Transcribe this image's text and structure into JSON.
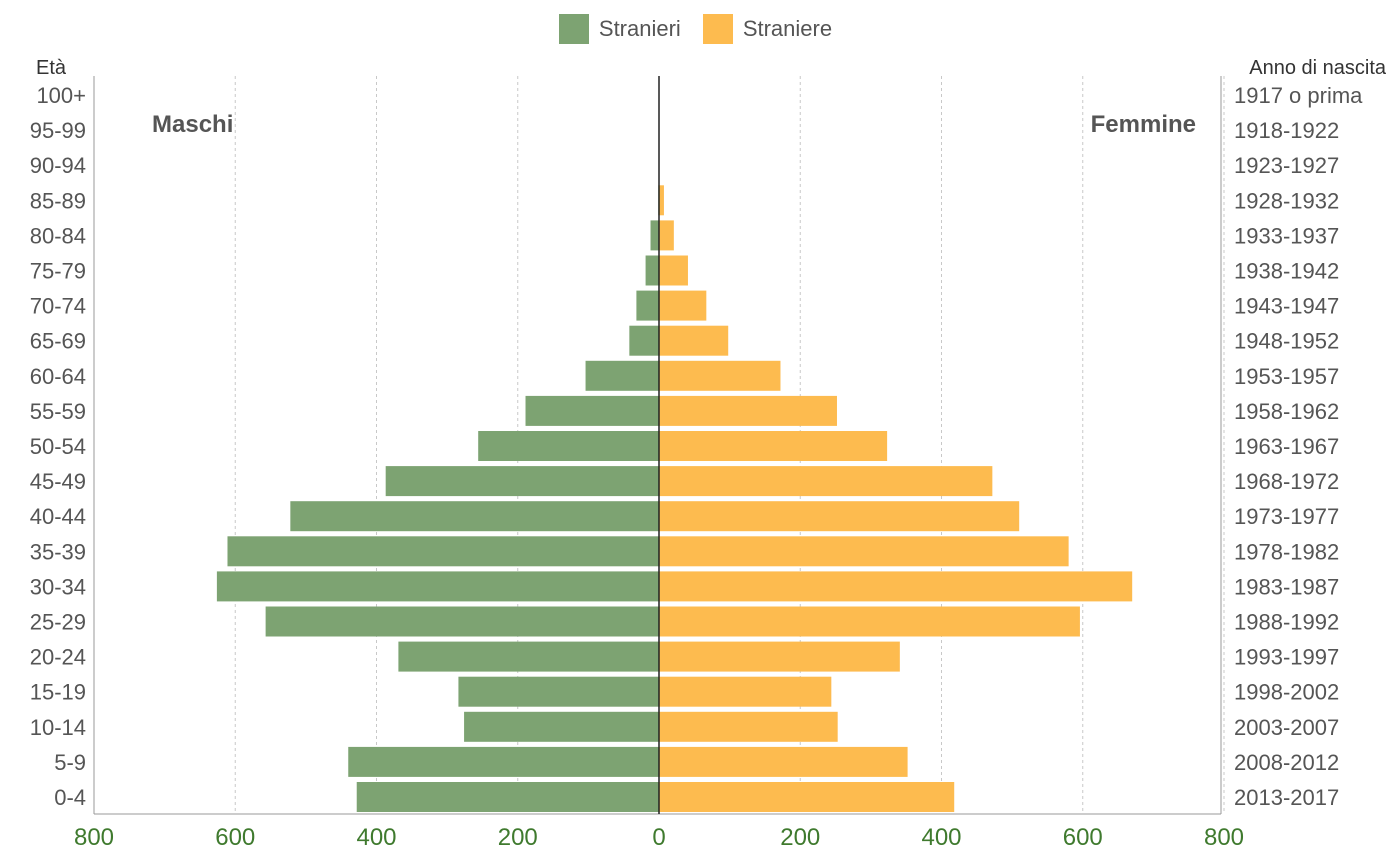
{
  "chart_data": {
    "type": "bar",
    "orientation": "horizontal-pyramid",
    "legend": {
      "placement": "top-center"
    },
    "grid": true,
    "left_axis_label": "Età",
    "right_axis_label": "Anno di nascita",
    "left_title": "Maschi",
    "right_title": "Femmine",
    "xlim": [
      -800,
      800
    ],
    "x_ticks": [
      -800,
      -600,
      -400,
      -200,
      0,
      200,
      400,
      600,
      800
    ],
    "x_tick_labels": [
      "800",
      "600",
      "400",
      "200",
      "0",
      "200",
      "400",
      "600",
      "800"
    ],
    "categories": [
      "0-4",
      "5-9",
      "10-14",
      "15-19",
      "20-24",
      "25-29",
      "30-34",
      "35-39",
      "40-44",
      "45-49",
      "50-54",
      "55-59",
      "60-64",
      "65-69",
      "70-74",
      "75-79",
      "80-84",
      "85-89",
      "90-94",
      "95-99",
      "100+"
    ],
    "birth_years": [
      "2013-2017",
      "2008-2012",
      "2003-2007",
      "1998-2002",
      "1993-1997",
      "1988-1992",
      "1983-1987",
      "1978-1982",
      "1973-1977",
      "1968-1972",
      "1963-1967",
      "1958-1962",
      "1953-1957",
      "1948-1952",
      "1943-1947",
      "1938-1942",
      "1933-1937",
      "1928-1932",
      "1923-1927",
      "1918-1922",
      "1917 o prima"
    ],
    "series": [
      {
        "name": "Stranieri",
        "color": "#7da372",
        "side": "left",
        "values": [
          428,
          440,
          276,
          284,
          369,
          557,
          626,
          611,
          522,
          387,
          256,
          189,
          104,
          42,
          32,
          19,
          12,
          1,
          0,
          0,
          0
        ]
      },
      {
        "name": "Straniere",
        "color": "#fdbb4f",
        "side": "right",
        "values": [
          418,
          352,
          253,
          244,
          341,
          596,
          670,
          580,
          510,
          472,
          323,
          252,
          172,
          98,
          67,
          41,
          21,
          7,
          0,
          0,
          0
        ]
      }
    ]
  }
}
